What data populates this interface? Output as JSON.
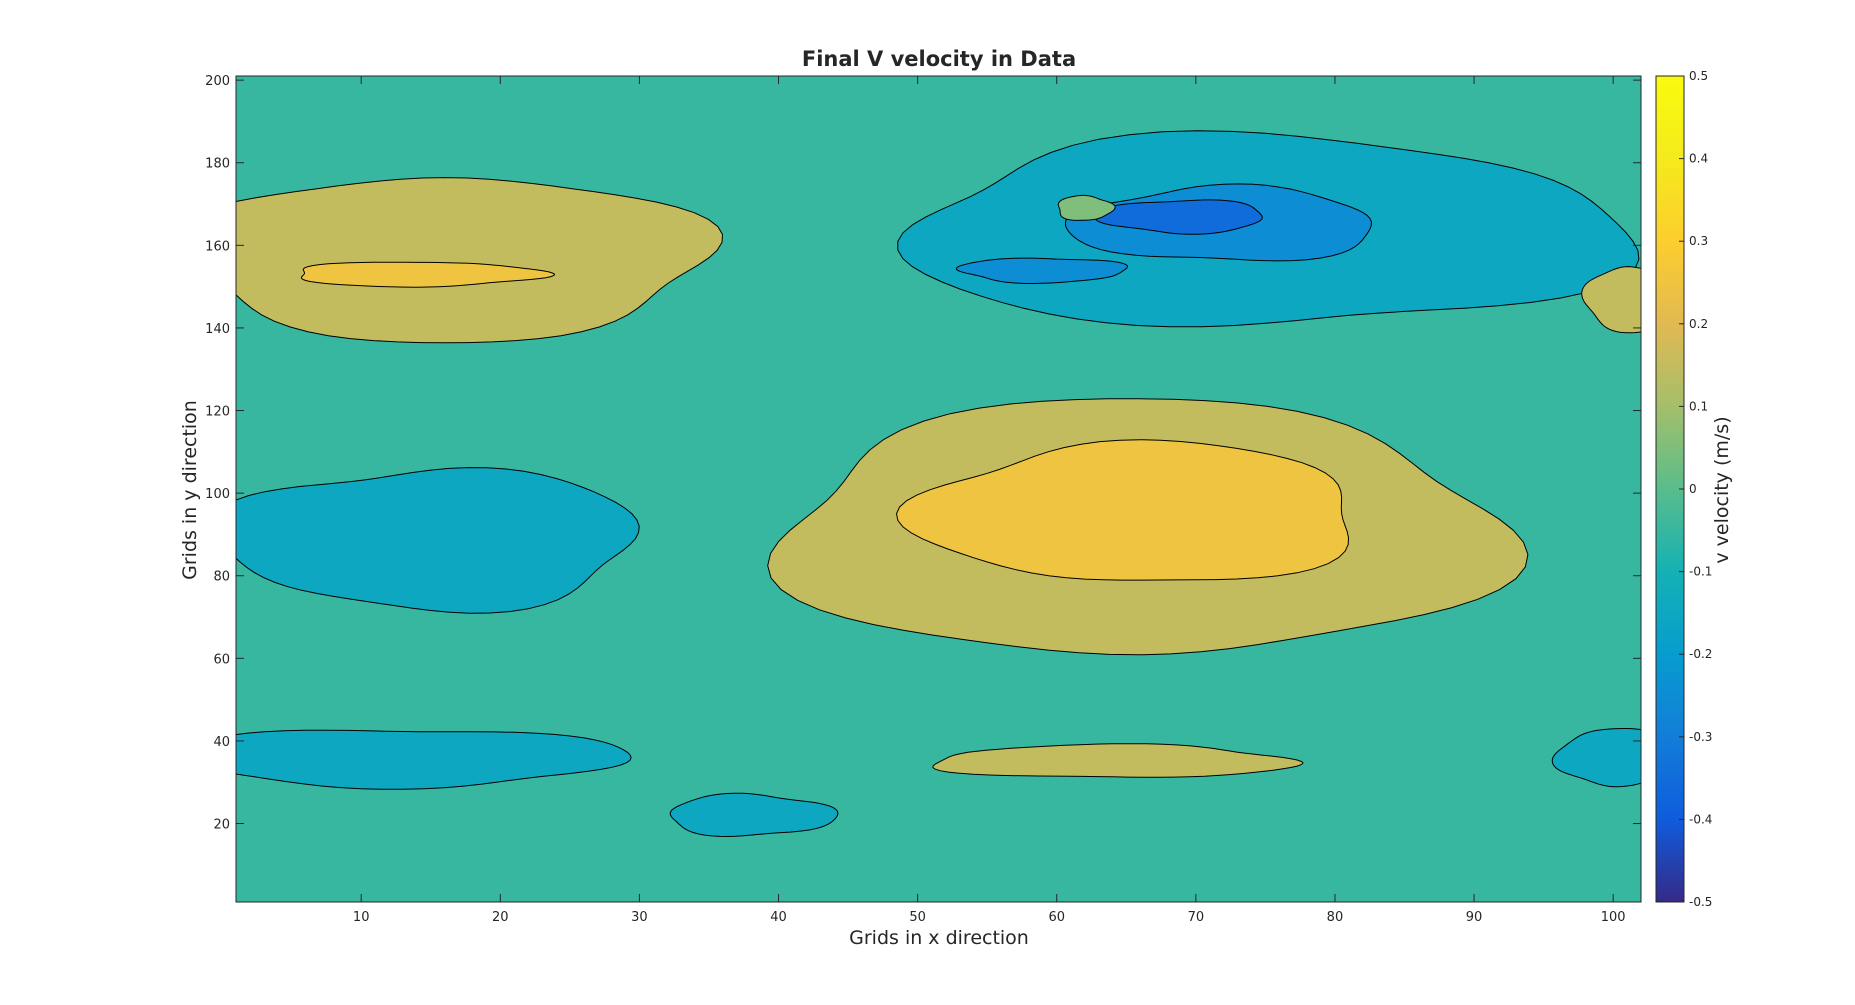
{
  "chart_data": {
    "type": "contour",
    "title": "Final V velocity in Data",
    "xlabel": "Grids in x direction",
    "ylabel": "Grids in y direction",
    "colorbar_label": "v velocity (m/s)",
    "xlim": [
      1,
      102
    ],
    "ylim": [
      1,
      201
    ],
    "clim": [
      -0.5,
      0.5
    ],
    "colormap": "parula",
    "contour_levels": [
      -0.4,
      -0.3,
      -0.2,
      -0.1,
      0,
      0.1,
      0.2,
      0.3
    ],
    "background_level": -0.1,
    "x_ticks": [
      "10",
      "20",
      "30",
      "40",
      "50",
      "60",
      "70",
      "80",
      "90",
      "100"
    ],
    "y_ticks": [
      "20",
      "40",
      "60",
      "80",
      "100",
      "120",
      "140",
      "160",
      "180",
      "200"
    ],
    "colorbar_ticks": [
      "-0.5",
      "-0.4",
      "-0.3",
      "-0.2",
      "-0.1",
      "0",
      "0.1",
      "0.2",
      "0.3",
      "0.4",
      "0.5"
    ],
    "regions": [
      {
        "name": "left-upper-high",
        "level": 0.1,
        "center": [
          16,
          157
        ],
        "radius": [
          19,
          20
        ]
      },
      {
        "name": "left-upper-peak",
        "level": 0.2,
        "center": [
          14,
          153
        ],
        "radius": [
          9,
          3
        ]
      },
      {
        "name": "upper-right-low",
        "level": -0.2,
        "center": [
          75,
          163
        ],
        "radius": [
          26,
          23
        ]
      },
      {
        "name": "upper-right-low-core",
        "level": -0.3,
        "center": [
          72,
          165
        ],
        "radius": [
          11,
          9
        ]
      },
      {
        "name": "upper-right-low-min",
        "level": -0.4,
        "center": [
          69,
          167
        ],
        "radius": [
          6,
          4
        ]
      },
      {
        "name": "upper-right-small-low",
        "level": -0.3,
        "center": [
          59,
          154
        ],
        "radius": [
          6,
          3
        ]
      },
      {
        "name": "upper-right-small-high",
        "level": 0,
        "center": [
          62,
          169
        ],
        "radius": [
          2,
          3
        ]
      },
      {
        "name": "center-high",
        "level": 0.1,
        "center": [
          66,
          91
        ],
        "radius": [
          26,
          31
        ]
      },
      {
        "name": "center-high-core",
        "level": 0.2,
        "center": [
          66,
          95
        ],
        "radius": [
          16,
          17
        ]
      },
      {
        "name": "left-low",
        "level": -0.2,
        "center": [
          15,
          89
        ],
        "radius": [
          15,
          17
        ]
      },
      {
        "name": "bottom-left-low",
        "level": -0.2,
        "center": [
          13,
          36
        ],
        "radius": [
          16,
          7
        ]
      },
      {
        "name": "bottom-mid-low",
        "level": -0.2,
        "center": [
          38,
          22
        ],
        "radius": [
          6,
          5
        ]
      },
      {
        "name": "bottom-right-high",
        "level": 0.1,
        "center": [
          64,
          35
        ],
        "radius": [
          13,
          4
        ]
      },
      {
        "name": "right-edge-low",
        "level": -0.2,
        "center": [
          100,
          36
        ],
        "radius": [
          4,
          7
        ]
      },
      {
        "name": "right-edge-high",
        "level": 0.1,
        "center": [
          101,
          147
        ],
        "radius": [
          3,
          8
        ]
      }
    ]
  },
  "colors": {
    "background": "#ffffff",
    "axis": "#262626",
    "contour_line": "#000000"
  }
}
